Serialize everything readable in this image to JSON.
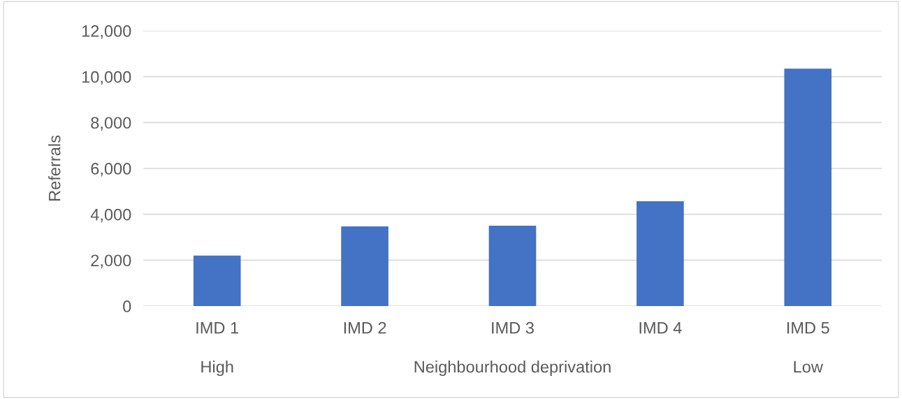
{
  "chart_data": {
    "type": "bar",
    "categories": [
      "IMD 1",
      "IMD 2",
      "IMD 3",
      "IMD 4",
      "IMD 5"
    ],
    "values": [
      2200,
      3470,
      3500,
      4570,
      10350
    ],
    "color": "#4472c4",
    "xlabel": "Neighbourhood deprivation",
    "ylabel": "Referrals",
    "ylim": [
      0,
      12000
    ],
    "yticks": [
      {
        "value": 0,
        "label": "0"
      },
      {
        "value": 2000,
        "label": "2,000"
      },
      {
        "value": 4000,
        "label": "4,000"
      },
      {
        "value": 6000,
        "label": "6,000"
      },
      {
        "value": 8000,
        "label": "8,000"
      },
      {
        "value": 10000,
        "label": "10,000"
      },
      {
        "value": 12000,
        "label": "12,000"
      }
    ],
    "grid": "y",
    "annotations": [
      "High",
      "Low"
    ]
  }
}
